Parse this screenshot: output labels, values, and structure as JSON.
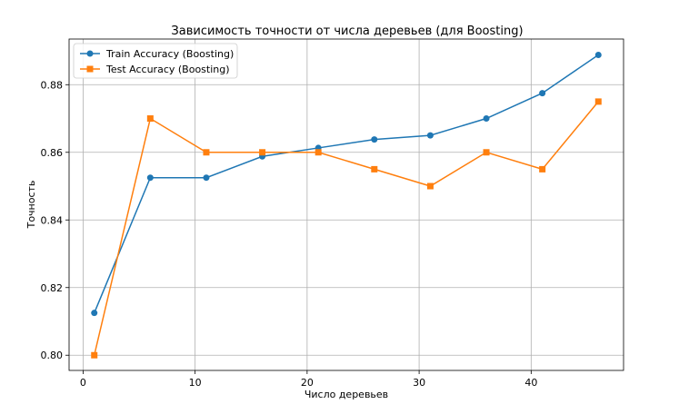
{
  "chart_data": {
    "type": "line",
    "title": "Зависимость точности от числа деревьев (для Boosting)",
    "xlabel": "Число деревьев",
    "ylabel": "Точность",
    "xlim": [
      -1.25,
      48.25
    ],
    "ylim": [
      0.7955,
      0.8935
    ],
    "xticks": [
      0,
      10,
      20,
      30,
      40
    ],
    "yticks": [
      0.8,
      0.82,
      0.84,
      0.86,
      0.88
    ],
    "ytick_labels": [
      "0.80",
      "0.82",
      "0.84",
      "0.86",
      "0.88"
    ],
    "grid": true,
    "legend_position": "top-left",
    "x": [
      1,
      6,
      11,
      16,
      21,
      26,
      31,
      36,
      41,
      46
    ],
    "series": [
      {
        "name": "Train Accuracy (Boosting)",
        "marker": "circle",
        "color": "#1f77b4",
        "values": [
          0.8125,
          0.8525,
          0.8525,
          0.8588,
          0.8613,
          0.8638,
          0.865,
          0.87,
          0.8775,
          0.8888
        ]
      },
      {
        "name": "Test Accuracy (Boosting)",
        "marker": "square",
        "color": "#ff7f0e",
        "values": [
          0.8,
          0.87,
          0.86,
          0.86,
          0.86,
          0.855,
          0.85,
          0.86,
          0.855,
          0.875
        ]
      }
    ]
  }
}
